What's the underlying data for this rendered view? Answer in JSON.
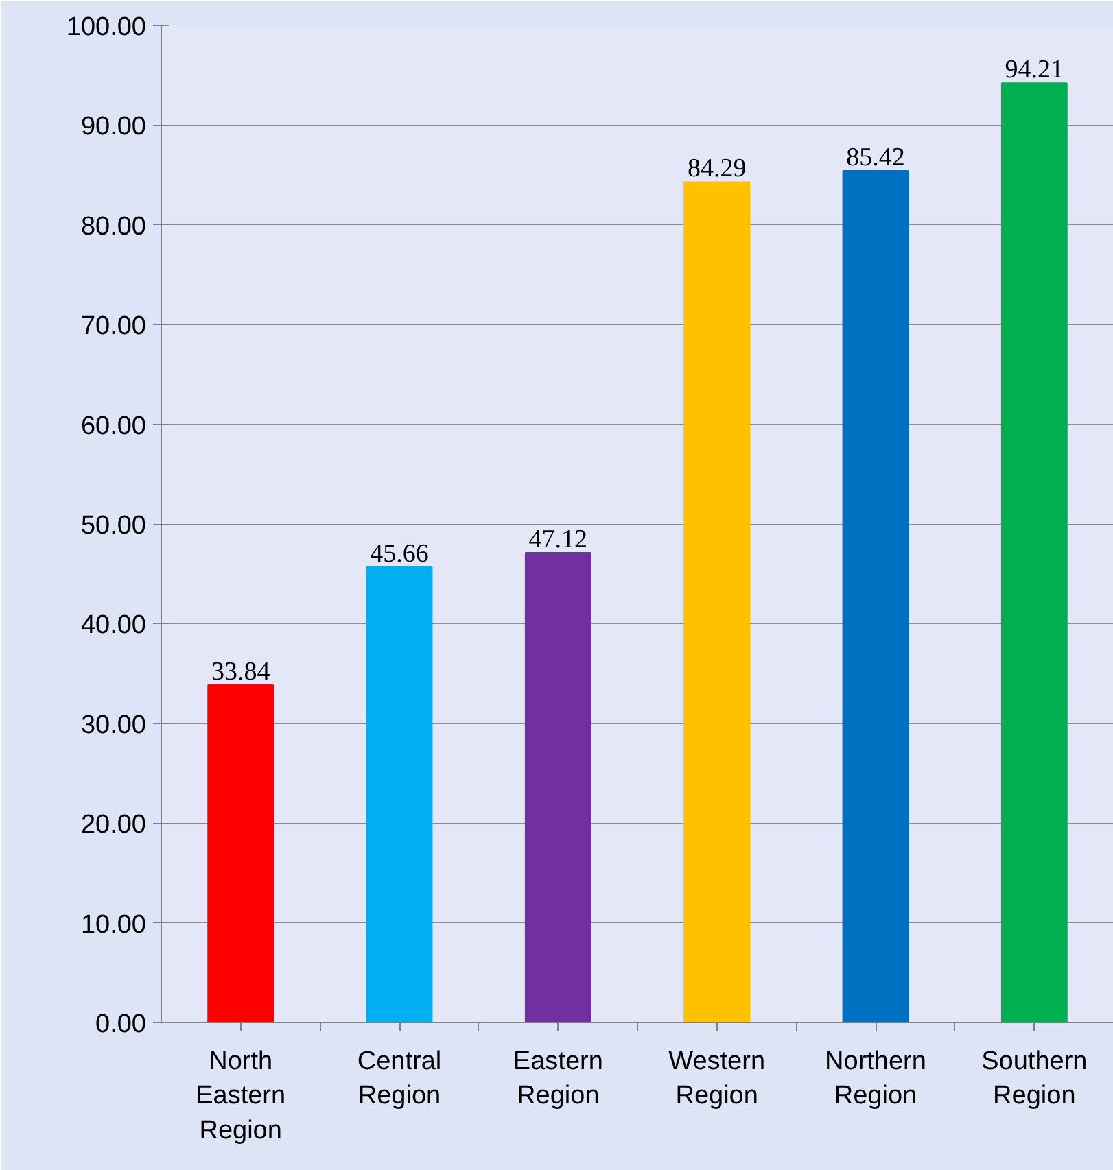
{
  "chart_data": {
    "type": "bar",
    "categories": [
      "North Eastern Region",
      "Central Region",
      "Eastern Region",
      "Western Region",
      "Northern Region",
      "Southern Region"
    ],
    "values": [
      33.84,
      45.66,
      47.12,
      84.29,
      85.42,
      94.21
    ],
    "colors": [
      "#ff0000",
      "#00b0f0",
      "#7030a0",
      "#ffc000",
      "#0070c0",
      "#00b050"
    ],
    "ylim": [
      0,
      100
    ],
    "yticks": [
      {
        "value": 0,
        "label": "0.00"
      },
      {
        "value": 10,
        "label": "10.00"
      },
      {
        "value": 20,
        "label": "20.00"
      },
      {
        "value": 30,
        "label": "30.00"
      },
      {
        "value": 40,
        "label": "40.00"
      },
      {
        "value": 50,
        "label": "50.00"
      },
      {
        "value": 60,
        "label": "60.00"
      },
      {
        "value": 70,
        "label": "70.00"
      },
      {
        "value": 80,
        "label": "80.00"
      },
      {
        "value": 90,
        "label": "90.00"
      },
      {
        "value": 100,
        "label": "100.00"
      }
    ],
    "grid": "y",
    "data_labels": true
  }
}
